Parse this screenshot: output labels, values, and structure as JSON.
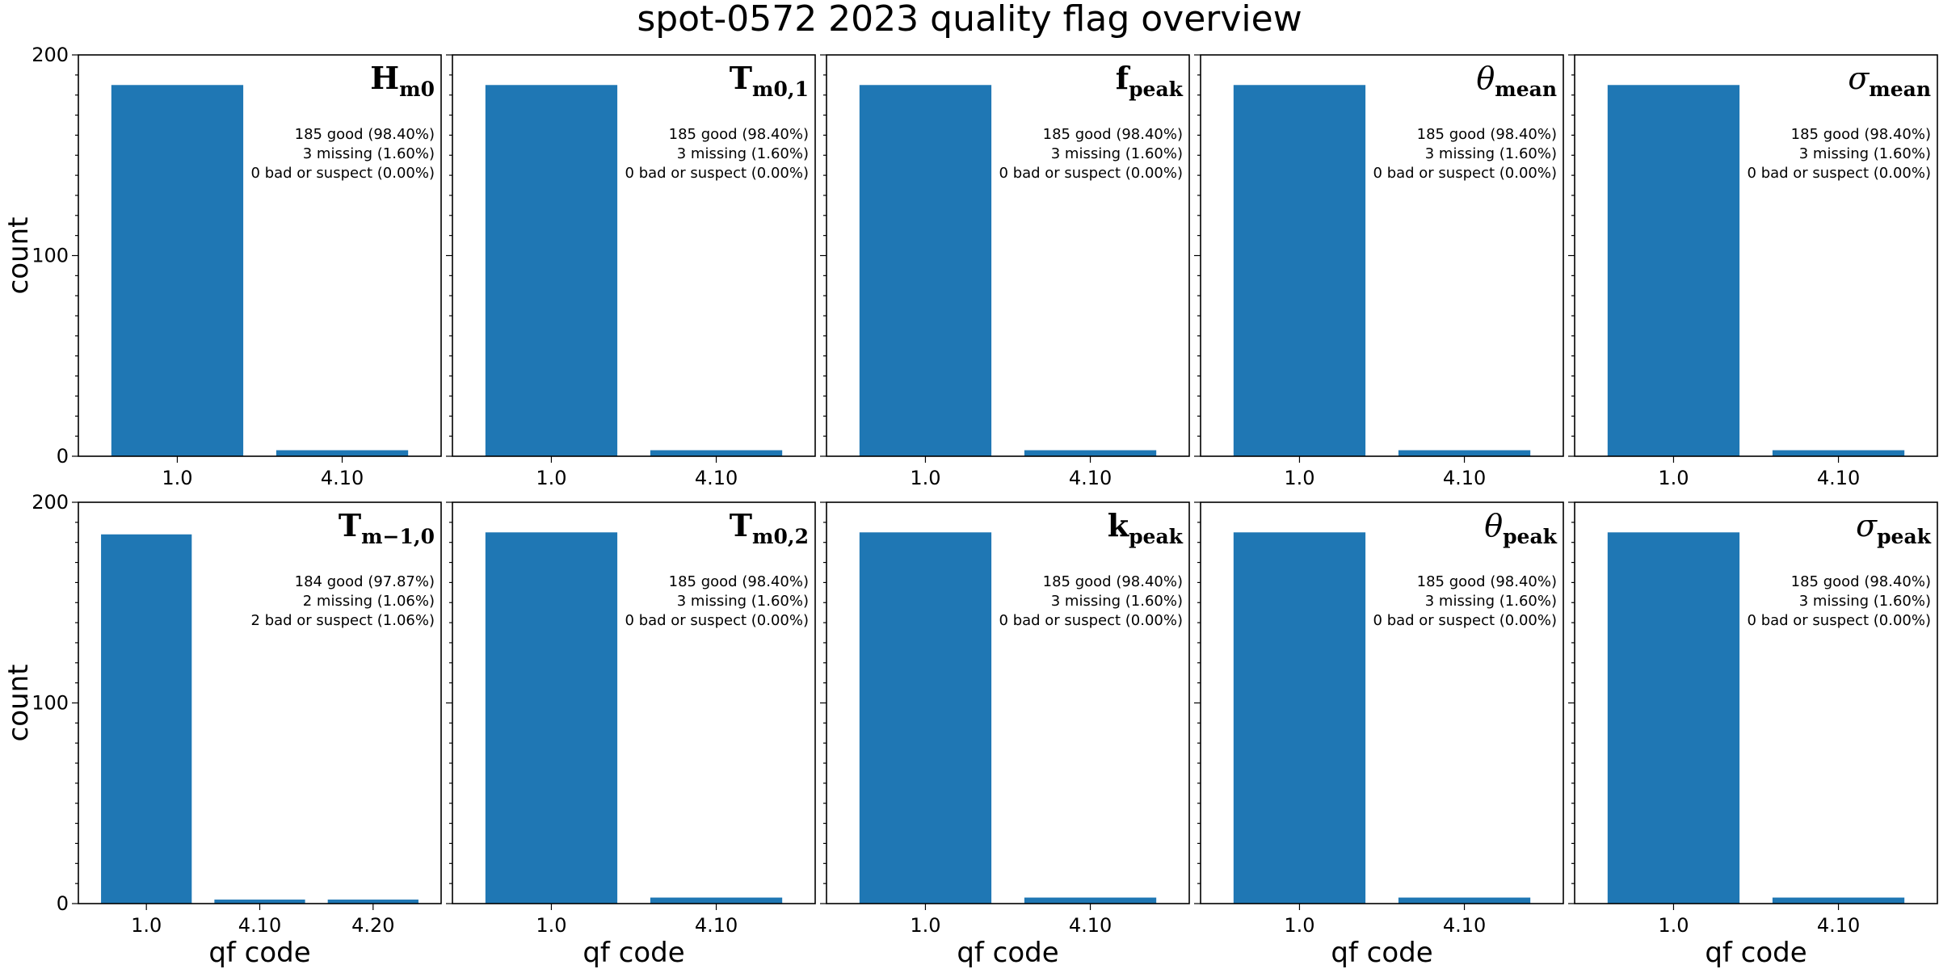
{
  "figure": {
    "title": "spot-0572 2023 quality flag overview",
    "bar_color": "#1f77b4"
  },
  "chart_data": [
    {
      "type": "bar",
      "panel": "Hm0",
      "name_main": "H",
      "name_sub": "m0",
      "name_italic": false,
      "categories": [
        "1.0",
        "4.10"
      ],
      "values": [
        185,
        3
      ],
      "ylim": [
        0,
        200
      ],
      "yticks": [
        0,
        100,
        200
      ],
      "ylabel": "count",
      "xlabel": "",
      "annotation": [
        "185 good (98.40%)",
        "3 missing (1.60%)",
        "0 bad or suspect (0.00%)"
      ]
    },
    {
      "type": "bar",
      "panel": "Tm01",
      "name_main": "T",
      "name_sub": "m0,1",
      "name_italic": false,
      "categories": [
        "1.0",
        "4.10"
      ],
      "values": [
        185,
        3
      ],
      "ylim": [
        0,
        200
      ],
      "yticks": [
        0,
        100,
        200
      ],
      "ylabel": "",
      "xlabel": "",
      "annotation": [
        "185 good (98.40%)",
        "3 missing (1.60%)",
        "0 bad or suspect (0.00%)"
      ]
    },
    {
      "type": "bar",
      "panel": "fpeak",
      "name_main": "f",
      "name_sub": "peak",
      "name_italic": false,
      "categories": [
        "1.0",
        "4.10"
      ],
      "values": [
        185,
        3
      ],
      "ylim": [
        0,
        200
      ],
      "yticks": [
        0,
        100,
        200
      ],
      "ylabel": "",
      "xlabel": "",
      "annotation": [
        "185 good (98.40%)",
        "3 missing (1.60%)",
        "0 bad or suspect (0.00%)"
      ]
    },
    {
      "type": "bar",
      "panel": "theta_mean",
      "name_main": "θ",
      "name_sub": "mean",
      "name_italic": true,
      "categories": [
        "1.0",
        "4.10"
      ],
      "values": [
        185,
        3
      ],
      "ylim": [
        0,
        200
      ],
      "yticks": [
        0,
        100,
        200
      ],
      "ylabel": "",
      "xlabel": "",
      "annotation": [
        "185 good (98.40%)",
        "3 missing (1.60%)",
        "0 bad or suspect (0.00%)"
      ]
    },
    {
      "type": "bar",
      "panel": "sigma_mean",
      "name_main": "σ",
      "name_sub": "mean",
      "name_italic": true,
      "categories": [
        "1.0",
        "4.10"
      ],
      "values": [
        185,
        3
      ],
      "ylim": [
        0,
        200
      ],
      "yticks": [
        0,
        100,
        200
      ],
      "ylabel": "",
      "xlabel": "",
      "annotation": [
        "185 good (98.40%)",
        "3 missing (1.60%)",
        "0 bad or suspect (0.00%)"
      ]
    },
    {
      "type": "bar",
      "panel": "Tm-10",
      "name_main": "T",
      "name_sub": "m−1,0",
      "name_italic": false,
      "categories": [
        "1.0",
        "4.10",
        "4.20"
      ],
      "values": [
        184,
        2,
        2
      ],
      "ylim": [
        0,
        200
      ],
      "yticks": [
        0,
        100,
        200
      ],
      "ylabel": "count",
      "xlabel": "qf code",
      "annotation": [
        "184 good (97.87%)",
        "2 missing (1.06%)",
        "2 bad or suspect (1.06%)"
      ]
    },
    {
      "type": "bar",
      "panel": "Tm02",
      "name_main": "T",
      "name_sub": "m0,2",
      "name_italic": false,
      "categories": [
        "1.0",
        "4.10"
      ],
      "values": [
        185,
        3
      ],
      "ylim": [
        0,
        200
      ],
      "yticks": [
        0,
        100,
        200
      ],
      "ylabel": "",
      "xlabel": "qf code",
      "annotation": [
        "185 good (98.40%)",
        "3 missing (1.60%)",
        "0 bad or suspect (0.00%)"
      ]
    },
    {
      "type": "bar",
      "panel": "kpeak",
      "name_main": "k",
      "name_sub": "peak",
      "name_italic": false,
      "categories": [
        "1.0",
        "4.10"
      ],
      "values": [
        185,
        3
      ],
      "ylim": [
        0,
        200
      ],
      "yticks": [
        0,
        100,
        200
      ],
      "ylabel": "",
      "xlabel": "qf code",
      "annotation": [
        "185 good (98.40%)",
        "3 missing (1.60%)",
        "0 bad or suspect (0.00%)"
      ]
    },
    {
      "type": "bar",
      "panel": "theta_peak",
      "name_main": "θ",
      "name_sub": "peak",
      "name_italic": true,
      "categories": [
        "1.0",
        "4.10"
      ],
      "values": [
        185,
        3
      ],
      "ylim": [
        0,
        200
      ],
      "yticks": [
        0,
        100,
        200
      ],
      "ylabel": "",
      "xlabel": "qf code",
      "annotation": [
        "185 good (98.40%)",
        "3 missing (1.60%)",
        "0 bad or suspect (0.00%)"
      ]
    },
    {
      "type": "bar",
      "panel": "sigma_peak",
      "name_main": "σ",
      "name_sub": "peak",
      "name_italic": true,
      "categories": [
        "1.0",
        "4.10"
      ],
      "values": [
        185,
        3
      ],
      "ylim": [
        0,
        200
      ],
      "yticks": [
        0,
        100,
        200
      ],
      "ylabel": "",
      "xlabel": "qf code",
      "annotation": [
        "185 good (98.40%)",
        "3 missing (1.60%)",
        "0 bad or suspect (0.00%)"
      ]
    }
  ]
}
